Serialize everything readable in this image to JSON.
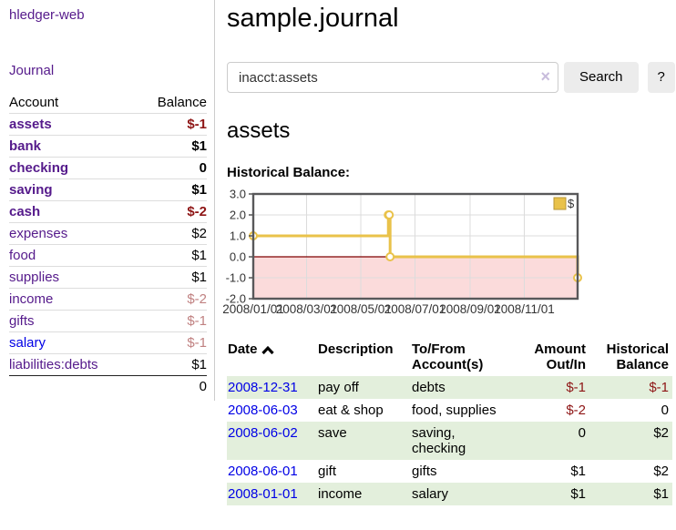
{
  "app": {
    "title": "hledger-web"
  },
  "sidebar": {
    "journal_link": "Journal",
    "headers": {
      "account": "Account",
      "balance": "Balance"
    },
    "accounts": [
      {
        "name": "assets",
        "level": 0,
        "current": true,
        "balance": "$-1",
        "balance_style": "neg-strong",
        "link_style": "purple"
      },
      {
        "name": "bank",
        "level": 1,
        "current": true,
        "balance": "$1",
        "balance_style": "plain",
        "link_style": "purple"
      },
      {
        "name": "checking",
        "level": 2,
        "current": true,
        "balance": "0",
        "balance_style": "plain",
        "link_style": "purple"
      },
      {
        "name": "saving",
        "level": 2,
        "current": true,
        "balance": "$1",
        "balance_style": "plain",
        "link_style": "purple"
      },
      {
        "name": "cash",
        "level": 1,
        "current": true,
        "balance": "$-2",
        "balance_style": "neg-strong",
        "link_style": "purple"
      },
      {
        "name": "expenses",
        "level": 0,
        "current": false,
        "balance": "$2",
        "balance_style": "plain",
        "link_style": "purple"
      },
      {
        "name": "food",
        "level": 1,
        "current": false,
        "balance": "$1",
        "balance_style": "plain",
        "link_style": "purple"
      },
      {
        "name": "supplies",
        "level": 1,
        "current": false,
        "balance": "$1",
        "balance_style": "plain",
        "link_style": "purple"
      },
      {
        "name": "income",
        "level": 0,
        "current": false,
        "balance": "$-2",
        "balance_style": "neg-faded",
        "link_style": "purple"
      },
      {
        "name": "gifts",
        "level": 1,
        "current": false,
        "balance": "$-1",
        "balance_style": "neg-faded",
        "link_style": "purple"
      },
      {
        "name": "salary",
        "level": 1,
        "current": false,
        "balance": "$-1",
        "balance_style": "neg-faded",
        "link_style": "blue"
      },
      {
        "name": "liabilities:debts",
        "level": 0,
        "current": false,
        "balance": "$1",
        "balance_style": "plain",
        "link_style": "purple"
      }
    ],
    "total": "0"
  },
  "header": {
    "title": "sample.journal"
  },
  "search": {
    "value": "inacct:assets",
    "clear_icon": "×",
    "search_button": "Search",
    "help_button": "?"
  },
  "account_view": {
    "title": "assets",
    "chart_label": "Historical Balance:"
  },
  "chart_data": {
    "type": "line",
    "title": "Historical Balance",
    "step": true,
    "legend": "$",
    "legend_position": "top-right",
    "grid": true,
    "ylim": [
      -2.0,
      3.0
    ],
    "yticks": [
      "3.0",
      "2.0",
      "1.0",
      "0.0",
      "-1.0",
      "-2.0"
    ],
    "ytick_values": [
      3.0,
      2.0,
      1.0,
      0.0,
      -1.0,
      -2.0
    ],
    "x_range": [
      "2008-01-01",
      "2008-12-31"
    ],
    "xticks": [
      {
        "label": "2008/01/01",
        "date": "2008-01-01"
      },
      {
        "label": "2008/03/01",
        "date": "2008-03-01"
      },
      {
        "label": "2008/05/01",
        "date": "2008-05-01"
      },
      {
        "label": "2008/07/01",
        "date": "2008-07-01"
      },
      {
        "label": "2008/09/01",
        "date": "2008-09-01"
      },
      {
        "label": "2008/11/01",
        "date": "2008-11-01"
      }
    ],
    "series": [
      {
        "name": "$",
        "color": "#e9c24a",
        "marker_fill": "#ffffff",
        "points": [
          {
            "x": "2008-01-01",
            "y": 1
          },
          {
            "x": "2008-06-01",
            "y": 2
          },
          {
            "x": "2008-06-02",
            "y": 2
          },
          {
            "x": "2008-06-03",
            "y": 0
          },
          {
            "x": "2008-12-31",
            "y": -1
          }
        ]
      }
    ],
    "negative_region_fill": "#fbdbdb",
    "zero_line_color": "#7f0000",
    "frame_color": "#58585a",
    "gridline_color": "#dcdcdc"
  },
  "register": {
    "columns": [
      {
        "label": "Date",
        "sorted_asc": true
      },
      {
        "label": "Description"
      },
      {
        "label": "To/From Account(s)"
      },
      {
        "label": "Amount Out/In"
      },
      {
        "label": "Historical Balance"
      }
    ],
    "rows": [
      {
        "date": "2008-12-31",
        "description": "pay off",
        "accounts": "debts",
        "amount": "$-1",
        "amount_neg": true,
        "balance": "$-1",
        "balance_neg": true,
        "shaded": true
      },
      {
        "date": "2008-06-03",
        "description": "eat & shop",
        "accounts": "food, supplies",
        "amount": "$-2",
        "amount_neg": true,
        "balance": "0",
        "balance_neg": false,
        "shaded": false
      },
      {
        "date": "2008-06-02",
        "description": "save",
        "accounts": "saving, checking",
        "amount": "0",
        "amount_neg": false,
        "balance": "$2",
        "balance_neg": false,
        "shaded": true
      },
      {
        "date": "2008-06-01",
        "description": "gift",
        "accounts": "gifts",
        "amount": "$1",
        "amount_neg": false,
        "balance": "$2",
        "balance_neg": false,
        "shaded": false
      },
      {
        "date": "2008-01-01",
        "description": "income",
        "accounts": "salary",
        "amount": "$1",
        "amount_neg": false,
        "balance": "$1",
        "balance_neg": false,
        "shaded": true
      }
    ]
  }
}
